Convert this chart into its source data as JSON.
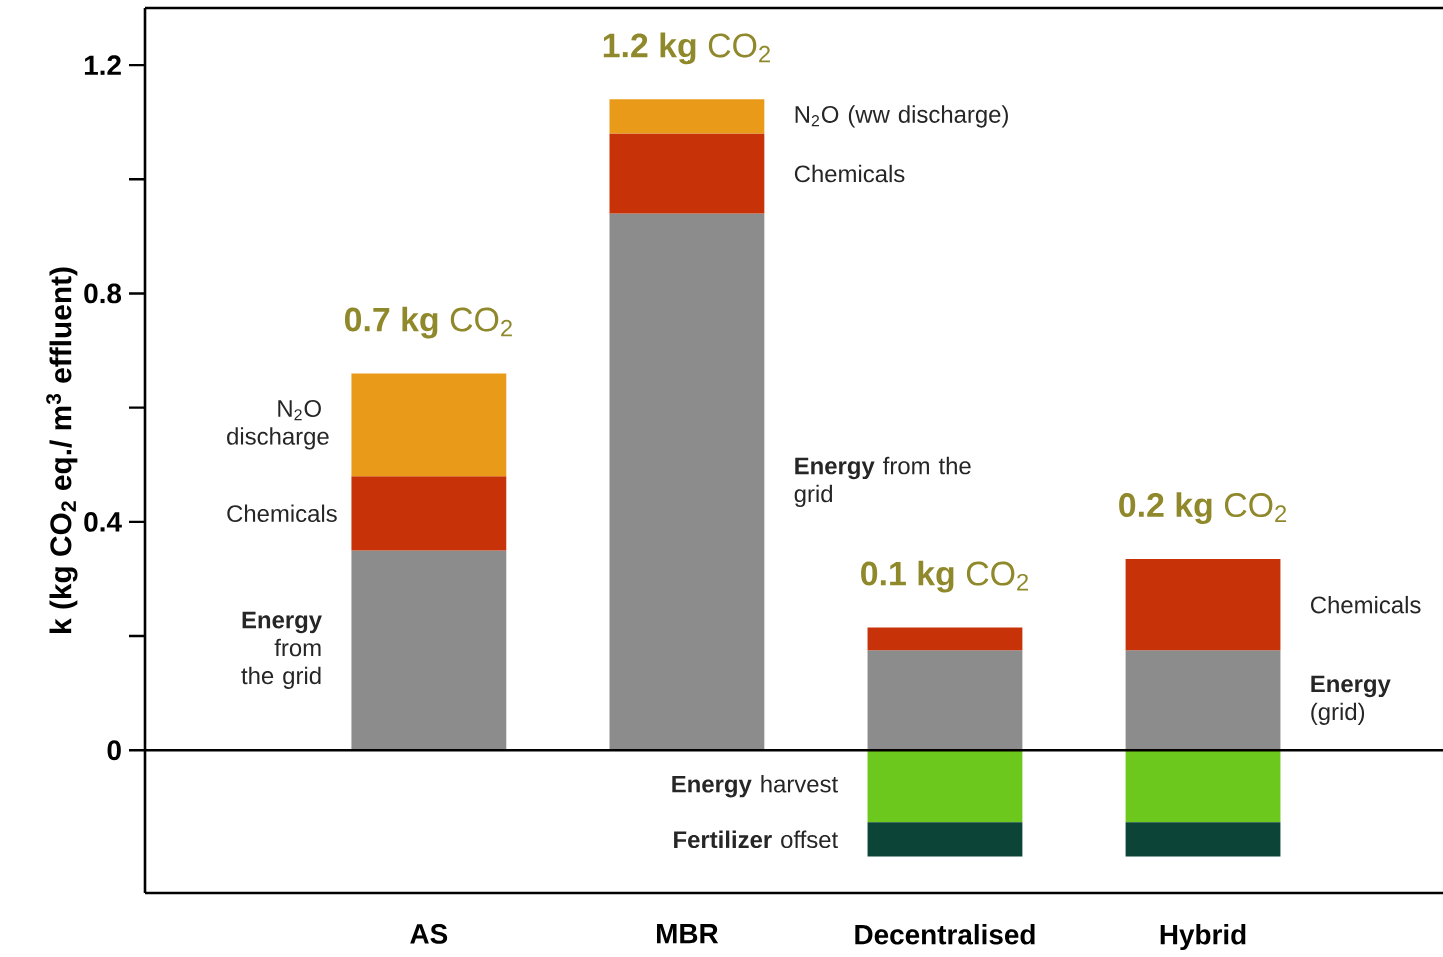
{
  "chart_data": {
    "type": "bar",
    "stacked": true,
    "ylabel": "k (kg CO$_{2}$ eq./ m$^{3}$ effluent)",
    "categories": [
      "AS",
      "MBR",
      "Decentralised",
      "Hybrid"
    ],
    "series": [
      {
        "color": "#8c8c8c",
        "values": [
          0.35,
          0.94,
          0.175,
          0.175
        ]
      },
      {
        "color": "#c83208",
        "values": [
          0.13,
          0.14,
          0.04,
          0.16
        ]
      },
      {
        "color": "#e89a18",
        "values": [
          0.18,
          0.06,
          null,
          null
        ]
      },
      {
        "color": "#6cc81c",
        "values": [
          null,
          null,
          -0.126,
          -0.126
        ]
      },
      {
        "color": "#0c4438",
        "values": [
          null,
          null,
          -0.06,
          -0.06
        ]
      }
    ],
    "totals": [
      "**0.7 kg** CO$_{2}$",
      "**1.2 kg** CO$_{2}$",
      "**0.1 kg** CO$_{2}$",
      "**0.2 kg** CO$_{2}$"
    ],
    "annotations": [
      "N$_{2}$O discharge",
      "Chemicals",
      "**Energy** from the grid",
      "N$_{2}$O (ww discharge)",
      "Chemicals",
      "**Energy** from the grid",
      "**Energy** harvest",
      "**Fertilizer** offset",
      "Chemicals",
      "**Energy** (grid)"
    ],
    "ref_lines": [
      {
        "axis": "y",
        "value": 0
      }
    ],
    "ylim": [
      -0.25,
      1.3
    ],
    "yticks": [
      0,
      0.4,
      0.8,
      1.2
    ]
  }
}
